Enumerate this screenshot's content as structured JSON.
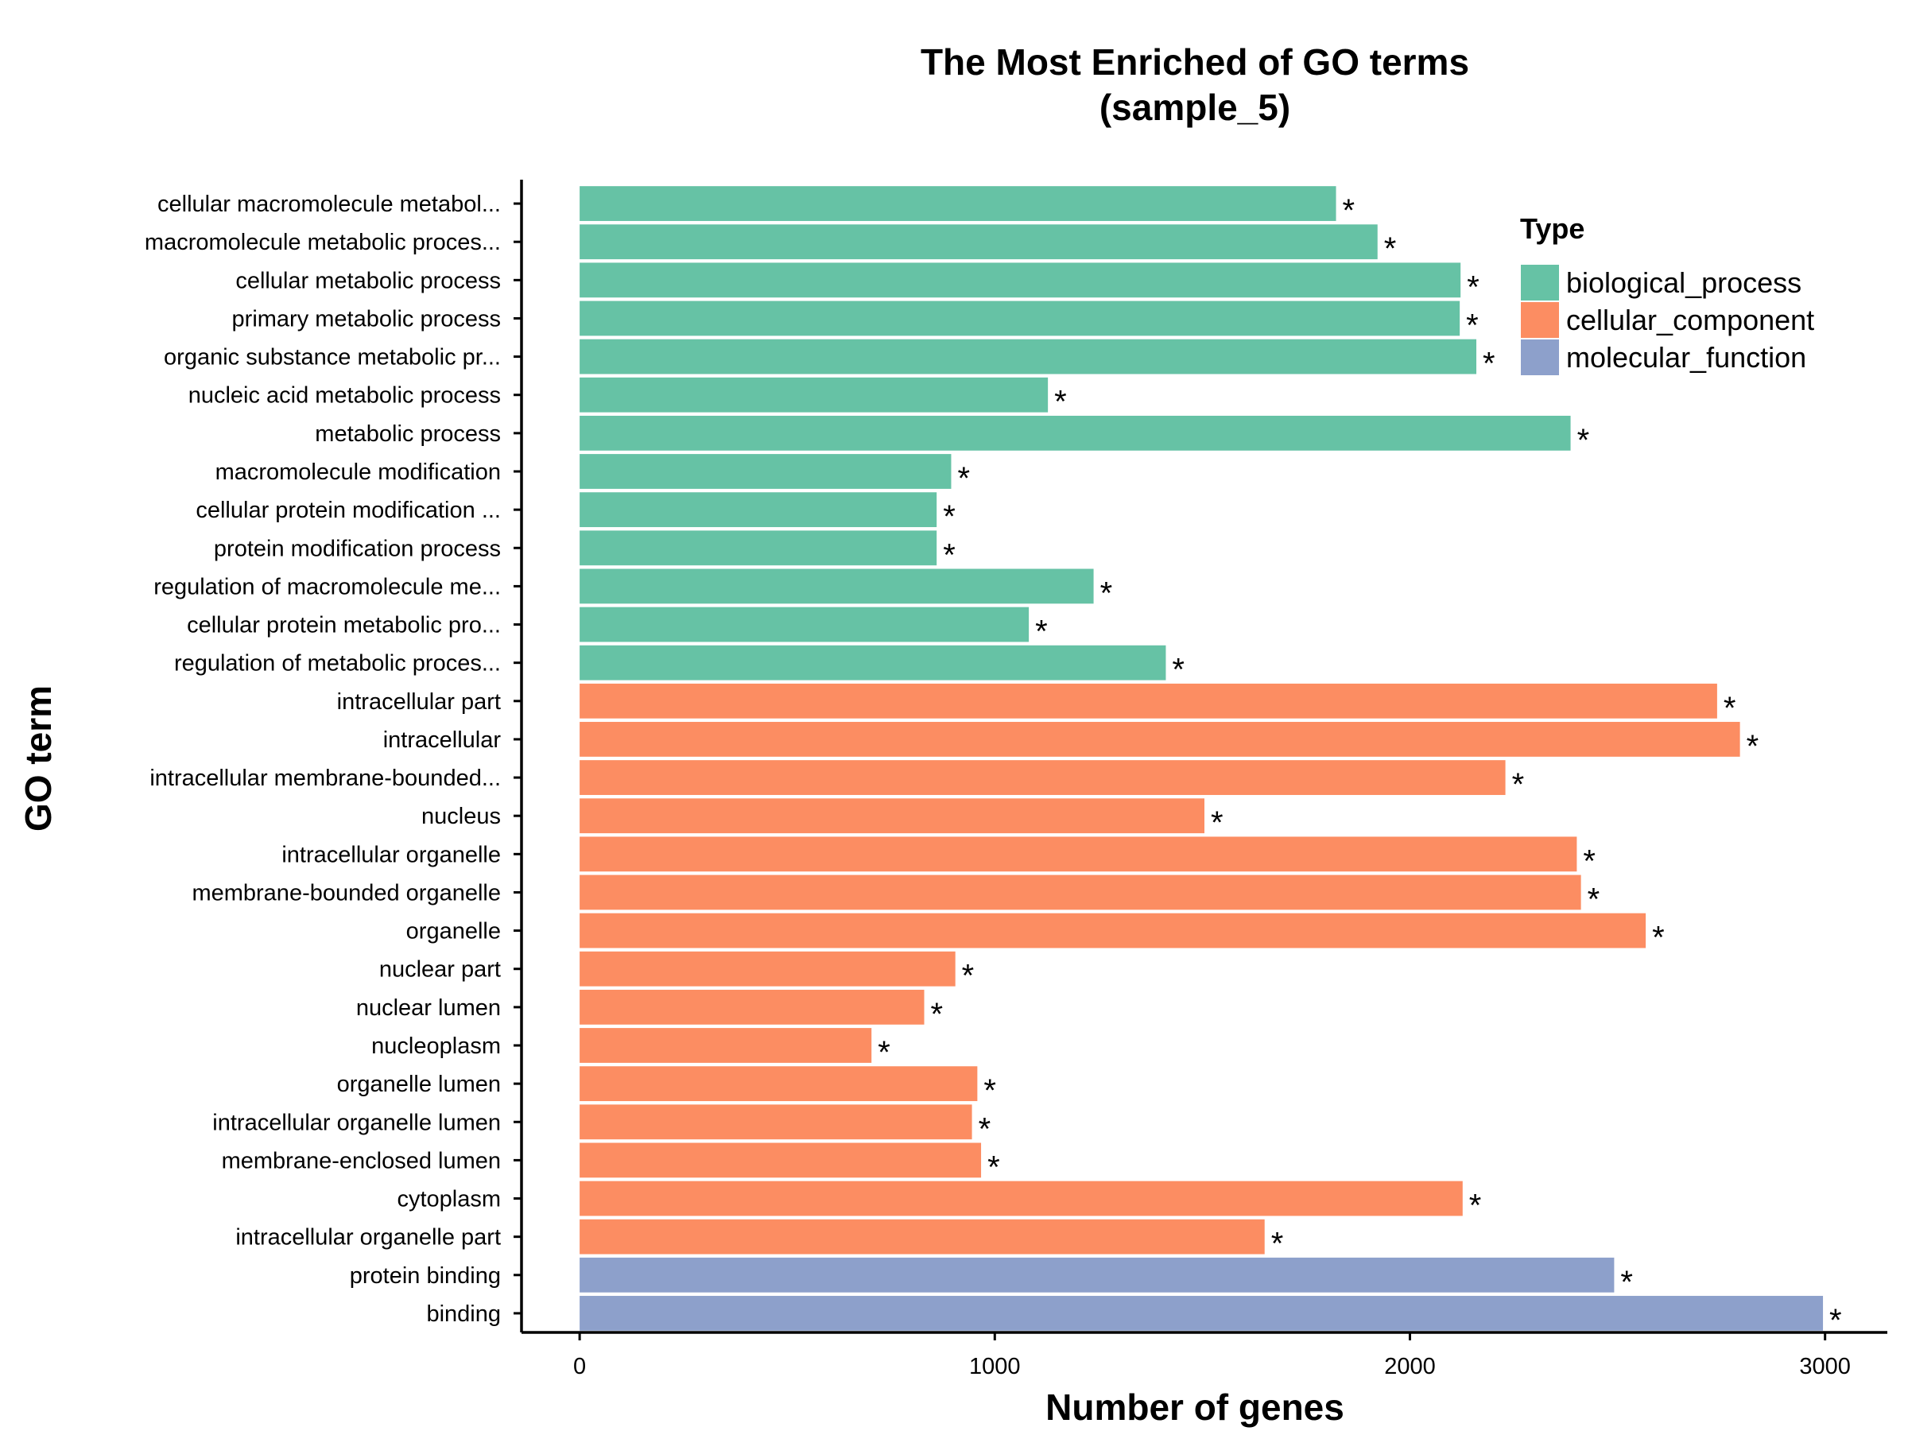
{
  "chart_data": {
    "type": "bar",
    "orientation": "horizontal",
    "title": "The Most Enriched of GO terms",
    "subtitle": "(sample_5)",
    "xlabel": "Number of genes",
    "ylabel": "GO term",
    "xlim": [
      -140,
      3150
    ],
    "xticks": [
      0,
      1000,
      2000,
      3000
    ],
    "xtick_labels": [
      "0",
      "1000",
      "2000",
      "3000"
    ],
    "grid": false,
    "legend": {
      "title": "Type",
      "position": "top-right",
      "entries": [
        {
          "name": "biological_process",
          "color": "#66c2a5"
        },
        {
          "name": "cellular_component",
          "color": "#fc8d62"
        },
        {
          "name": "molecular_function",
          "color": "#8da0cb"
        }
      ]
    },
    "significance_marker": "*",
    "bars": [
      {
        "label": "cellular macromolecule metabol...",
        "value": 1822,
        "type": "biological_process"
      },
      {
        "label": "macromolecule metabolic proces...",
        "value": 1922,
        "type": "biological_process"
      },
      {
        "label": "cellular metabolic process",
        "value": 2122,
        "type": "biological_process"
      },
      {
        "label": "primary metabolic process",
        "value": 2120,
        "type": "biological_process"
      },
      {
        "label": "organic substance metabolic pr...",
        "value": 2160,
        "type": "biological_process"
      },
      {
        "label": "nucleic acid metabolic process",
        "value": 1128,
        "type": "biological_process"
      },
      {
        "label": "metabolic process",
        "value": 2387,
        "type": "biological_process"
      },
      {
        "label": "macromolecule modification",
        "value": 895,
        "type": "biological_process"
      },
      {
        "label": "cellular protein modification ...",
        "value": 860,
        "type": "biological_process"
      },
      {
        "label": "protein modification process",
        "value": 860,
        "type": "biological_process"
      },
      {
        "label": "regulation of macromolecule me...",
        "value": 1238,
        "type": "biological_process"
      },
      {
        "label": "cellular protein metabolic pro...",
        "value": 1082,
        "type": "biological_process"
      },
      {
        "label": "regulation of metabolic proces...",
        "value": 1412,
        "type": "biological_process"
      },
      {
        "label": "intracellular part",
        "value": 2740,
        "type": "cellular_component"
      },
      {
        "label": "intracellular",
        "value": 2795,
        "type": "cellular_component"
      },
      {
        "label": "intracellular membrane-bounded...",
        "value": 2230,
        "type": "cellular_component"
      },
      {
        "label": "nucleus",
        "value": 1505,
        "type": "cellular_component"
      },
      {
        "label": "intracellular organelle",
        "value": 2402,
        "type": "cellular_component"
      },
      {
        "label": "membrane-bounded organelle",
        "value": 2412,
        "type": "cellular_component"
      },
      {
        "label": "organelle",
        "value": 2568,
        "type": "cellular_component"
      },
      {
        "label": "nuclear part",
        "value": 905,
        "type": "cellular_component"
      },
      {
        "label": "nuclear lumen",
        "value": 830,
        "type": "cellular_component"
      },
      {
        "label": "nucleoplasm",
        "value": 703,
        "type": "cellular_component"
      },
      {
        "label": "organelle lumen",
        "value": 958,
        "type": "cellular_component"
      },
      {
        "label": "intracellular organelle lumen",
        "value": 945,
        "type": "cellular_component"
      },
      {
        "label": "membrane-enclosed lumen",
        "value": 967,
        "type": "cellular_component"
      },
      {
        "label": "cytoplasm",
        "value": 2127,
        "type": "cellular_component"
      },
      {
        "label": "intracellular organelle part",
        "value": 1650,
        "type": "cellular_component"
      },
      {
        "label": "protein binding",
        "value": 2492,
        "type": "molecular_function"
      },
      {
        "label": "binding",
        "value": 2995,
        "type": "molecular_function"
      }
    ]
  }
}
